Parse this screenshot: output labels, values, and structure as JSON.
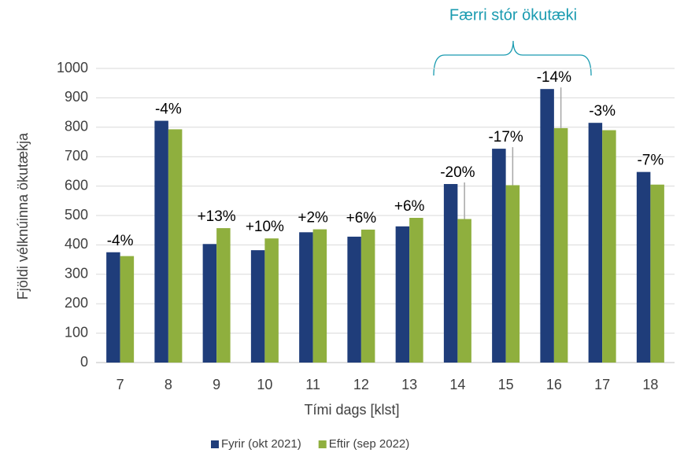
{
  "chart_data": {
    "type": "bar",
    "xlabel": "Tími dags [klst]",
    "ylabel": "Fjöldi vélknúinna ökutækja",
    "annotation": "Færri stór ökutæki",
    "categories": [
      "7",
      "8",
      "9",
      "10",
      "11",
      "12",
      "13",
      "14",
      "15",
      "16",
      "17",
      "18"
    ],
    "series": [
      {
        "name": "Fyrir (okt 2021)",
        "color": "#1f3d7a",
        "values": [
          375,
          822,
          403,
          382,
          443,
          428,
          463,
          607,
          727,
          930,
          815,
          648
        ]
      },
      {
        "name": "Eftir (sep 2022)",
        "color": "#8faf3e",
        "values": [
          362,
          793,
          457,
          422,
          453,
          452,
          492,
          488,
          603,
          797,
          790,
          605
        ]
      }
    ],
    "change_labels": [
      "-4%",
      "-4%",
      "+13%",
      "+10%",
      "+2%",
      "+6%",
      "+6%",
      "-20%",
      "-17%",
      "-14%",
      "-3%",
      "-7%"
    ],
    "ylim": [
      0,
      1000
    ],
    "yticks": [
      0,
      100,
      200,
      300,
      400,
      500,
      600,
      700,
      800,
      900,
      1000
    ],
    "grid": true,
    "legend": "bottom"
  }
}
